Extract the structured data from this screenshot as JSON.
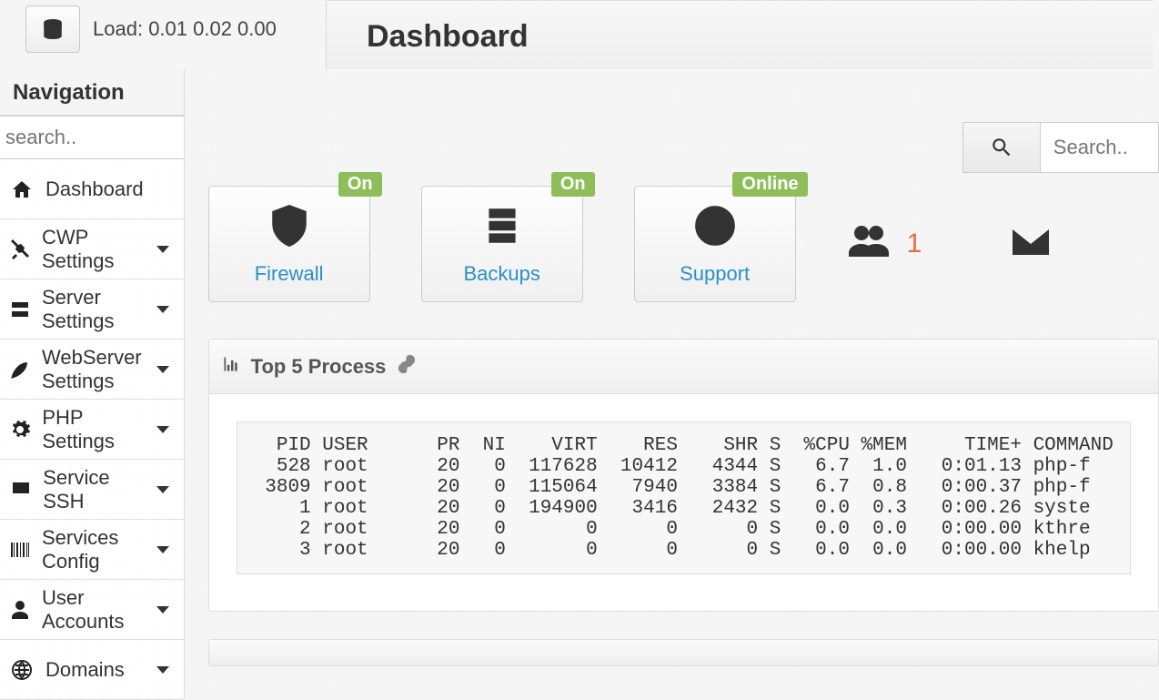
{
  "topbar": {
    "load_label": "Load:",
    "load_values": "0.01  0.02  0.00"
  },
  "header": {
    "title": "Dashboard"
  },
  "nav": {
    "title": "Navigation",
    "search_placeholder": "search..",
    "items": [
      {
        "label": "Dashboard",
        "icon": "home",
        "expandable": false
      },
      {
        "label": "CWP Settings",
        "icon": "tools",
        "expandable": true
      },
      {
        "label": "Server Settings",
        "icon": "server",
        "expandable": true
      },
      {
        "label": "WebServer Settings",
        "icon": "feather",
        "expandable": true
      },
      {
        "label": "PHP Settings",
        "icon": "gear",
        "expandable": true
      },
      {
        "label": "Service SSH",
        "icon": "monitor",
        "expandable": true
      },
      {
        "label": "Services Config",
        "icon": "barcode",
        "expandable": true
      },
      {
        "label": "User Accounts",
        "icon": "user",
        "expandable": true
      },
      {
        "label": "Domains",
        "icon": "globe",
        "expandable": true
      }
    ]
  },
  "search_main_placeholder": "Search..",
  "cards": [
    {
      "label": "Firewall",
      "badge": "On",
      "icon": "shield"
    },
    {
      "label": "Backups",
      "badge": "On",
      "icon": "drives"
    },
    {
      "label": "Support",
      "badge": "Online",
      "icon": "lifebuoy"
    }
  ],
  "users_count": "1",
  "process_panel": {
    "title": "Top 5 Process",
    "header": "  PID USER      PR  NI    VIRT    RES    SHR S  %CPU %MEM     TIME+ COMMAND",
    "rows": [
      "  528 root      20   0  117628  10412   4344 S   6.7  1.0   0:01.13 php-f",
      " 3809 root      20   0  115064   7940   3384 S   6.7  0.8   0:00.37 php-f",
      "    1 root      20   0  194900   3416   2432 S   0.0  0.3   0:00.26 syste",
      "    2 root      20   0       0      0      0 S   0.0  0.0   0:00.00 kthre",
      "    3 root      20   0       0      0      0 S   0.0  0.0   0:00.00 khelp"
    ]
  },
  "colors": {
    "link": "#2a8fc9",
    "badge_bg": "#8ebe5a",
    "stat_num": "#e86c3c"
  }
}
